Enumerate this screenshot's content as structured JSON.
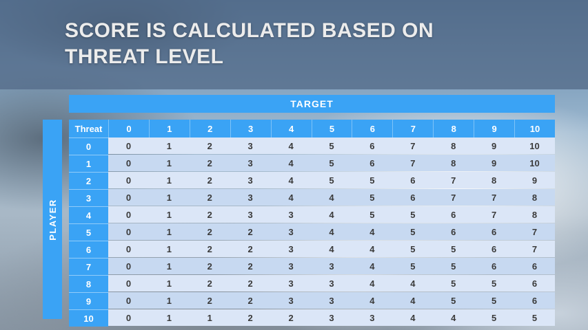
{
  "slide": {
    "title": "SCORE IS CALCULATED BASED ON THREAT LEVEL"
  },
  "table": {
    "target_label": "TARGET",
    "player_label": "PLAYER",
    "corner_label": "Threat",
    "column_headers": [
      "0",
      "1",
      "2",
      "3",
      "4",
      "5",
      "6",
      "7",
      "8",
      "9",
      "10"
    ],
    "rows": [
      {
        "threat": "0",
        "values": [
          "0",
          "1",
          "2",
          "3",
          "4",
          "5",
          "6",
          "7",
          "8",
          "9",
          "10"
        ]
      },
      {
        "threat": "1",
        "values": [
          "0",
          "1",
          "2",
          "3",
          "4",
          "5",
          "6",
          "7",
          "8",
          "9",
          "10"
        ]
      },
      {
        "threat": "2",
        "values": [
          "0",
          "1",
          "2",
          "3",
          "4",
          "5",
          "5",
          "6",
          "7",
          "8",
          "9"
        ]
      },
      {
        "threat": "3",
        "values": [
          "0",
          "1",
          "2",
          "3",
          "4",
          "4",
          "5",
          "6",
          "7",
          "7",
          "8"
        ]
      },
      {
        "threat": "4",
        "values": [
          "0",
          "1",
          "2",
          "3",
          "3",
          "4",
          "5",
          "5",
          "6",
          "7",
          "8"
        ]
      },
      {
        "threat": "5",
        "values": [
          "0",
          "1",
          "2",
          "2",
          "3",
          "4",
          "4",
          "5",
          "6",
          "6",
          "7"
        ]
      },
      {
        "threat": "6",
        "values": [
          "0",
          "1",
          "2",
          "2",
          "3",
          "4",
          "4",
          "5",
          "5",
          "6",
          "7"
        ]
      },
      {
        "threat": "7",
        "values": [
          "0",
          "1",
          "2",
          "2",
          "3",
          "3",
          "4",
          "5",
          "5",
          "6",
          "6"
        ]
      },
      {
        "threat": "8",
        "values": [
          "0",
          "1",
          "2",
          "2",
          "3",
          "3",
          "4",
          "4",
          "5",
          "5",
          "6"
        ]
      },
      {
        "threat": "9",
        "values": [
          "0",
          "1",
          "2",
          "2",
          "3",
          "3",
          "4",
          "4",
          "5",
          "5",
          "6"
        ]
      },
      {
        "threat": "10",
        "values": [
          "0",
          "1",
          "1",
          "2",
          "2",
          "3",
          "3",
          "4",
          "4",
          "5",
          "5"
        ]
      }
    ]
  },
  "colors": {
    "accent_blue": "#3aa3f5",
    "row_light": "#dbe6f7",
    "row_dark": "#c7d9f1",
    "title_band": "#546c89",
    "body_text": "#3a3a3a"
  }
}
